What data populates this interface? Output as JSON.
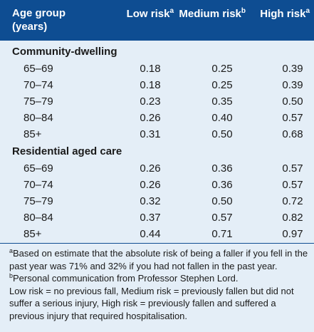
{
  "table": {
    "header": {
      "age_group_line1": "Age group",
      "age_group_line2": "(years)",
      "low_risk": "Low risk",
      "low_risk_sup": "a",
      "medium_risk": "Medium risk",
      "medium_risk_sup": "b",
      "high_risk": "High risk",
      "high_risk_sup": "a"
    },
    "sections": [
      {
        "title": "Community-dwelling",
        "rows": [
          {
            "age": "65–69",
            "low": "0.18",
            "medium": "0.25",
            "high": "0.39"
          },
          {
            "age": "70–74",
            "low": "0.18",
            "medium": "0.25",
            "high": "0.39"
          },
          {
            "age": "75–79",
            "low": "0.23",
            "medium": "0.35",
            "high": "0.50"
          },
          {
            "age": "80–84",
            "low": "0.26",
            "medium": "0.40",
            "high": "0.57"
          },
          {
            "age": "85+",
            "low": "0.31",
            "medium": "0.50",
            "high": "0.68"
          }
        ]
      },
      {
        "title": "Residential aged care",
        "rows": [
          {
            "age": "65–69",
            "low": "0.26",
            "medium": "0.36",
            "high": "0.57"
          },
          {
            "age": "70–74",
            "low": "0.26",
            "medium": "0.36",
            "high": "0.57"
          },
          {
            "age": "75–79",
            "low": "0.32",
            "medium": "0.50",
            "high": "0.72"
          },
          {
            "age": "80–84",
            "low": "0.37",
            "medium": "0.57",
            "high": "0.82"
          },
          {
            "age": "85+",
            "low": "0.44",
            "medium": "0.71",
            "high": "0.97"
          }
        ]
      }
    ]
  },
  "footnotes": {
    "a_sup": "a",
    "a_text": "Based on estimate that the absolute risk of being a faller if you fell in the past year was 71% and 32% if you had not fallen in the past year.",
    "b_sup": "b",
    "b_text": "Personal communication from Professor Stephen Lord.",
    "definitions": "Low risk = no previous fall, Medium risk = previously fallen but did not suffer a serious injury, High risk = previously fallen and suffered a previous injury that required hospitalisation."
  },
  "colors": {
    "header_bg": "#0e4d92",
    "body_bg": "#e4eef7"
  }
}
